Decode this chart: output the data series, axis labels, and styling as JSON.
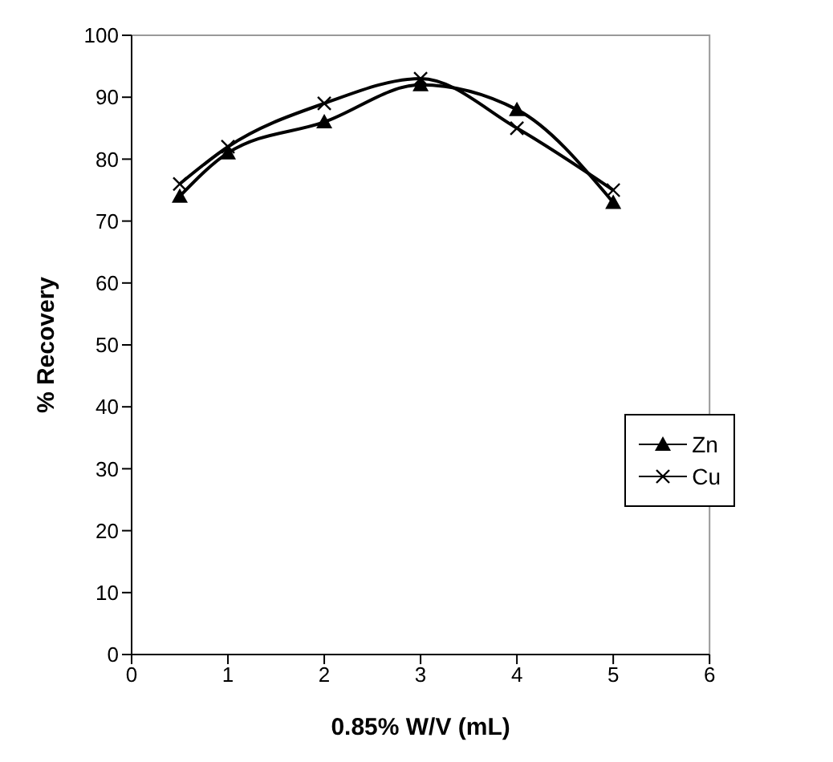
{
  "chart_data": {
    "type": "line",
    "xlabel": "0.85% W/V (mL)",
    "ylabel": "% Recovery",
    "x": [
      0.5,
      1,
      2,
      3,
      4,
      5
    ],
    "series": [
      {
        "name": "Zn",
        "color": "#000000",
        "marker": "triangle",
        "values": [
          74,
          81,
          86,
          92,
          88,
          73
        ]
      },
      {
        "name": "Cu",
        "color": "#000000",
        "marker": "cross",
        "values": [
          76,
          82,
          89,
          93,
          85,
          75
        ]
      }
    ],
    "xlim": [
      0,
      6
    ],
    "xticks": [
      0,
      1,
      2,
      3,
      4,
      5,
      6
    ],
    "ylim": [
      0,
      100
    ],
    "yticks": [
      0,
      10,
      20,
      30,
      40,
      50,
      60,
      70,
      80,
      90,
      100
    ],
    "grid": false,
    "legend": "right",
    "line_style": "solid"
  }
}
